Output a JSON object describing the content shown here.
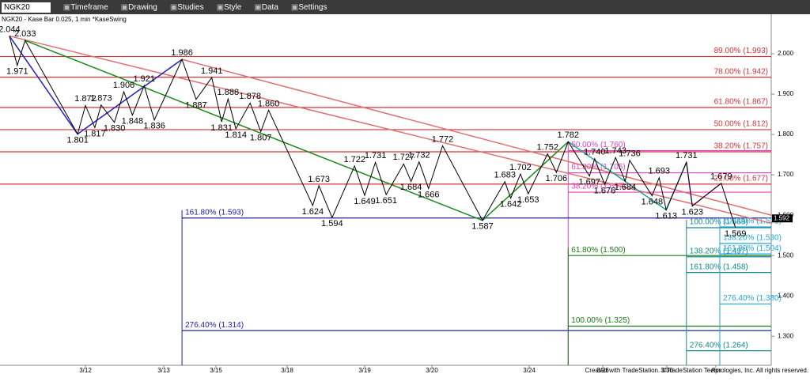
{
  "toolbar": {
    "symbol": "NGK20",
    "menus": [
      "Timeframe",
      "Drawing",
      "Studies",
      "Style",
      "Data",
      "Settings"
    ]
  },
  "chart_data": {
    "type": "line",
    "subtitle": "NGK20 - Kase Bar 0.025, 1 min  *KaseSwing",
    "x": [
      -0.97,
      -0.87,
      -0.77,
      -0.1,
      0,
      0.12,
      0.2,
      0.37,
      0.49,
      0.6,
      0.75,
      0.88,
      1.35,
      1.62,
      1.92,
      2.08,
      2.17,
      2.28,
      2.48,
      2.63,
      2.74,
      3.33,
      3.41,
      3.58,
      3.87,
      4.0,
      4.16,
      4.32,
      4.58,
      4.69,
      4.81,
      4.95,
      5.11,
      5.52,
      5.75,
      5.81,
      5.91,
      5.99,
      6.25,
      6.37,
      6.53,
      6.82,
      6.89,
      7.03,
      7.2,
      7.35,
      7.42,
      7.77,
      7.88,
      7.99,
      8.4,
      8.52,
      9.11,
      9.4
    ],
    "series": [
      {
        "color": "#000000",
        "values": [
          2.044,
          1.971,
          2.033,
          1.801,
          1.872,
          1.817,
          1.873,
          1.83,
          1.906,
          1.848,
          1.921,
          1.836,
          1.986,
          1.887,
          1.941,
          1.831,
          1.888,
          1.814,
          1.878,
          1.807,
          1.86,
          1.624,
          1.673,
          1.594,
          1.722,
          1.649,
          1.731,
          1.651,
          1.727,
          1.684,
          1.732,
          1.666,
          1.772,
          1.587,
          1.683,
          1.642,
          1.702,
          1.653,
          1.752,
          1.706,
          1.782,
          1.697,
          1.74,
          1.676,
          1.743,
          1.684,
          1.736,
          1.648,
          1.693,
          1.613,
          1.731,
          1.623,
          1.679,
          1.569
        ],
        "value_labels": [
          "2.044",
          "1.971",
          "2.033",
          "1.801",
          "1.872",
          "1.817",
          "1.873",
          "1.830",
          "1.906",
          "1.848",
          "1.921",
          "1.836",
          "1.986",
          "1.887",
          "1.941",
          "1.831",
          "1.888",
          "1.814",
          "1.878",
          "1.807",
          "1.860",
          "1.624",
          "1.673",
          "1.594",
          "1.722",
          "1.649",
          "1.731",
          "1.651",
          "1.727",
          "1.684",
          "1.732",
          "1.666",
          "1.772",
          "1.587",
          "1.683",
          "1.642",
          "1.702",
          "1.653",
          "1.752",
          "1.706",
          "1.782",
          "1.697",
          "1.740",
          "1.676",
          "1.743",
          "1.684",
          "1.736",
          "1.648",
          "1.693",
          "1.613",
          "1.731",
          "1.623",
          "1.679",
          "1.569"
        ]
      }
    ],
    "xlim": [
      -1.09,
      10.13
    ],
    "xticks": [
      {
        "value": 0,
        "label": "3/12"
      },
      {
        "value": 1,
        "label": "3/13"
      },
      {
        "value": 2,
        "label": "3/15"
      },
      {
        "value": 3,
        "label": "3/18"
      },
      {
        "value": 4,
        "label": "3/19"
      },
      {
        "value": 5,
        "label": "3/20"
      },
      {
        "value": 6,
        "label": "3/24"
      },
      {
        "value": 7,
        "label": "3/26"
      },
      {
        "value": 8,
        "label": "3/30"
      },
      {
        "value": 9,
        "label": "Apr"
      }
    ],
    "ylim": [
      1.228,
      2.098
    ],
    "yticks": [
      {
        "value": 2.0,
        "label": "2.000"
      },
      {
        "value": 1.9,
        "label": "1.900"
      },
      {
        "value": 1.8,
        "label": "1.800"
      },
      {
        "value": 1.7,
        "label": "1.700"
      },
      {
        "value": 1.6,
        "label": "1.600"
      },
      {
        "value": 1.5,
        "label": "1.500"
      },
      {
        "value": 1.4,
        "label": "1.400"
      },
      {
        "value": 1.3,
        "label": "1.300"
      }
    ],
    "last_price": 1.592,
    "fib_groups": [
      {
        "color": "#d0343a",
        "x": -1.09,
        "levels": [
          {
            "value": 1.993,
            "label": "89.00% (1.993)"
          },
          {
            "value": 1.942,
            "label": "78.00% (1.942)"
          },
          {
            "value": 1.867,
            "label": "61.80% (1.867)"
          },
          {
            "value": 1.812,
            "label": "50.00% (1.812)"
          },
          {
            "value": 1.757,
            "label": "38.20% (1.757)"
          },
          {
            "value": 1.677,
            "label": "21.00% (1.677)"
          }
        ]
      },
      {
        "color": "#e040c0",
        "x": 6.53,
        "levels": [
          {
            "value": 1.76,
            "label": "50.00% (1.760)"
          },
          {
            "value": 1.705,
            "label": "61.80% (1.705)"
          },
          {
            "value": 1.657,
            "label": "38.20% (1.657)"
          }
        ]
      },
      {
        "color": "#2020b0",
        "x": 1.35,
        "levels": [
          {
            "value": 1.593,
            "label": "161.80% (1.593)"
          },
          {
            "value": 1.314,
            "label": "276.40% (1.314)"
          }
        ]
      },
      {
        "color": "#1a7a1a",
        "x": 6.53,
        "levels": [
          {
            "value": 1.5,
            "label": "61.80% (1.500)"
          },
          {
            "value": 1.325,
            "label": "100.00% (1.325)"
          }
        ]
      },
      {
        "color": "#138a8a",
        "x": 8.4,
        "levels": [
          {
            "value": 1.569,
            "label": "100.00% (1.569)"
          },
          {
            "value": 1.497,
            "label": "138.20% (1.497)"
          },
          {
            "value": 1.458,
            "label": "161.80% (1.458)"
          },
          {
            "value": 1.264,
            "label": "276.40% (1.264)"
          }
        ]
      },
      {
        "color": "#20a8d8",
        "x": 9.08,
        "levels": [
          {
            "value": 1.571,
            "label": "100.00% (1.571)"
          },
          {
            "value": 1.53,
            "label": "138.20% (1.530)"
          },
          {
            "value": 1.504,
            "label": "161.80% (1.504)"
          },
          {
            "value": 1.38,
            "label": "276.40% (1.380)"
          }
        ]
      }
    ],
    "trend_lines": [
      {
        "color": "#e07070",
        "x": [
          -0.97,
          10.13
        ],
        "values": [
          2.044,
          1.58
        ]
      },
      {
        "color": "#e07070",
        "x": [
          1.35,
          10.13
        ],
        "values": [
          1.986,
          1.6
        ]
      },
      {
        "color": "#1a8a1a",
        "x": [
          -0.77,
          5.52,
          6.53
        ],
        "values": [
          2.033,
          1.587,
          1.782
        ]
      },
      {
        "color": "#2020c0",
        "x": [
          -0.97,
          -0.1,
          1.35
        ],
        "values": [
          2.044,
          1.801,
          1.986
        ]
      },
      {
        "color": "#20a0a0",
        "x": [
          6.53,
          7.99,
          8.4
        ],
        "values": [
          1.782,
          1.613,
          1.731
        ]
      },
      {
        "color": "#c060d0",
        "x": [
          8.4,
          8.52,
          9.11
        ],
        "values": [
          1.731,
          1.623,
          1.679
        ]
      }
    ]
  },
  "footer": "Created with TradeStation. ©TradeStation Technologies, Inc. All rights reserved."
}
